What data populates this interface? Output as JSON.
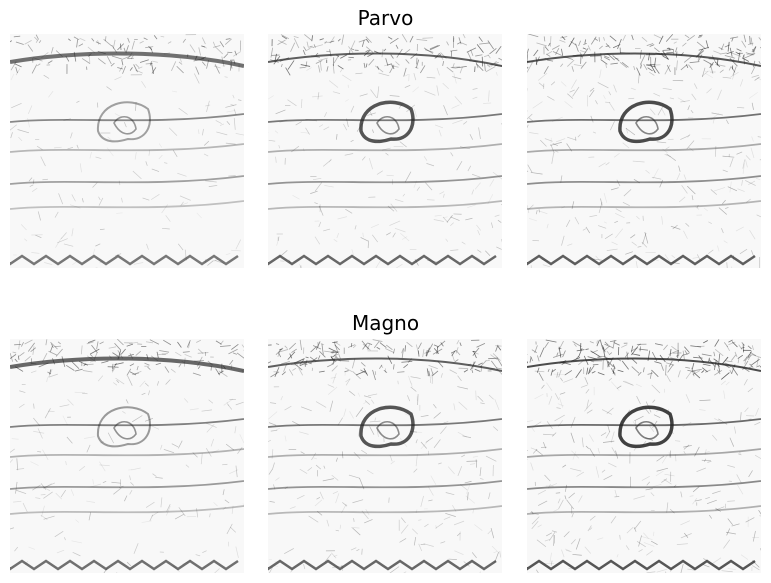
{
  "rows": [
    {
      "title": "Parvo",
      "panels": [
        {
          "edge_density": 0.35,
          "contrast": 0.75
        },
        {
          "edge_density": 0.55,
          "contrast": 0.85
        },
        {
          "edge_density": 0.75,
          "contrast": 0.9
        }
      ]
    },
    {
      "title": "Magno",
      "panels": [
        {
          "edge_density": 0.45,
          "contrast": 0.8
        },
        {
          "edge_density": 0.65,
          "contrast": 0.85
        },
        {
          "edge_density": 0.85,
          "contrast": 0.95
        }
      ]
    }
  ],
  "colors": {
    "background": "#ffffff",
    "ink": "#222222",
    "panel_bg": "#f8f8f8"
  }
}
